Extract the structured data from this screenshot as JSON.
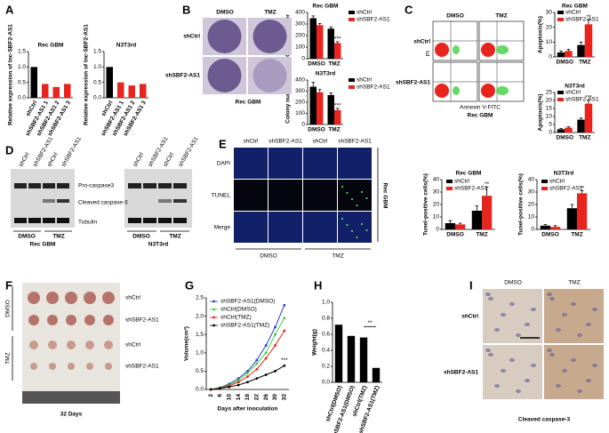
{
  "panel_letters": [
    "A",
    "B",
    "C",
    "D",
    "E",
    "F",
    "G",
    "H",
    "I"
  ],
  "chart_data": [
    {
      "type": "bar",
      "title": "Rec GBM",
      "y_label": "Relative expression of lnc-SBF2-AS1",
      "categories": [
        "shCtrl",
        "shSBF2-AS1 1",
        "shSBF2-AS1 2",
        "shSBF2-AS1 3"
      ],
      "values": [
        1.0,
        0.45,
        0.35,
        0.45
      ],
      "errors": [
        0.12,
        0.08,
        0.1,
        0.09
      ],
      "stars": [
        null,
        "**",
        "**",
        "**"
      ],
      "colors": [
        "#000000",
        "#e8241f",
        "#e8241f",
        "#e8241f"
      ],
      "ylim": [
        0,
        1.5
      ],
      "yticks": [
        {
          "value": 0,
          "label": "0.0"
        },
        {
          "value": 0.5,
          "label": "0.5"
        },
        {
          "value": 1,
          "label": "1.0"
        },
        {
          "value": 1.5,
          "label": "1.5"
        }
      ]
    },
    {
      "type": "bar",
      "title": "N3T3rd",
      "y_label": "Relative expression of lnc-SBF2-AS1",
      "categories": [
        "shCtrl",
        "shSBF2-AS1 1",
        "shSBF2-AS1 2",
        "shSBF2-AS1 3"
      ],
      "values": [
        1.0,
        0.5,
        0.4,
        0.45
      ],
      "errors": [
        0.12,
        0.08,
        0.1,
        0.09
      ],
      "stars": [
        null,
        "**",
        "**",
        "**"
      ],
      "colors": [
        "#000000",
        "#e8241f",
        "#e8241f",
        "#e8241f"
      ],
      "ylim": [
        0,
        1.5
      ],
      "yticks": [
        {
          "value": 0,
          "label": "0.0"
        },
        {
          "value": 0.5,
          "label": "0.5"
        },
        {
          "value": 1,
          "label": "1.0"
        },
        {
          "value": 1.5,
          "label": "1.5"
        }
      ]
    },
    {
      "type": "bar",
      "title": "Rec GBM",
      "y_label": "Colony number",
      "categories": [
        "DMSO",
        "TMZ"
      ],
      "series": [
        {
          "name": "shCtrl",
          "color": "#000000",
          "values": [
            350,
            260
          ],
          "errors": [
            20,
            15
          ],
          "stars": [
            null,
            null
          ]
        },
        {
          "name": "shSBF2-AS1",
          "color": "#e8241f",
          "values": [
            290,
            135
          ],
          "errors": [
            15,
            12
          ],
          "stars": [
            null,
            "***"
          ]
        }
      ],
      "ylim": [
        0,
        400
      ],
      "yticks": [
        0,
        100,
        200,
        300,
        400
      ]
    },
    {
      "type": "bar",
      "title": "N3T3rd",
      "y_label": "Colony number",
      "categories": [
        "DMSO",
        "TMZ"
      ],
      "series": [
        {
          "name": "shCtrl",
          "color": "#000000",
          "values": [
            340,
            265
          ],
          "errors": [
            40,
            20
          ],
          "stars": [
            null,
            null
          ]
        },
        {
          "name": "shSBF2-AS1",
          "color": "#e8241f",
          "values": [
            290,
            130
          ],
          "errors": [
            25,
            15
          ],
          "stars": [
            null,
            "***"
          ]
        }
      ],
      "ylim": [
        0,
        400
      ],
      "yticks": [
        0,
        100,
        200,
        300,
        400
      ]
    },
    {
      "type": "bar",
      "title": "Rec GBM",
      "y_label": "Apoptosis(%)",
      "categories": [
        "DMSO",
        "TMZ"
      ],
      "series": [
        {
          "name": "shCtrl",
          "color": "#000000",
          "values": [
            3,
            8
          ],
          "errors": [
            1,
            2
          ],
          "stars": [
            null,
            null
          ]
        },
        {
          "name": "shSBF2-AS1",
          "color": "#e8241f",
          "values": [
            4,
            22
          ],
          "errors": [
            1,
            3
          ],
          "stars": [
            null,
            "**"
          ]
        }
      ],
      "ylim": [
        0,
        30
      ],
      "yticks": [
        0,
        10,
        20,
        30
      ]
    },
    {
      "type": "bar",
      "title": "N3T3rd",
      "y_label": "Apoptosis(%)",
      "categories": [
        "DMSO",
        "TMZ"
      ],
      "series": [
        {
          "name": "shCtrl",
          "color": "#000000",
          "values": [
            2,
            8
          ],
          "errors": [
            0.5,
            1
          ],
          "stars": [
            null,
            null
          ]
        },
        {
          "name": "shSBF2-AS1",
          "color": "#e8241f",
          "values": [
            3,
            18
          ],
          "errors": [
            0.5,
            2
          ],
          "stars": [
            null,
            "***"
          ]
        }
      ],
      "ylim": [
        0,
        25
      ],
      "yticks": [
        0,
        5,
        10,
        15,
        20,
        25
      ]
    },
    {
      "type": "bar",
      "title": "Rec GBM",
      "y_label": "Tunel-positive cells(%)",
      "categories": [
        "DMSO",
        "TMZ"
      ],
      "series": [
        {
          "name": "shCtrl",
          "color": "#000000",
          "values": [
            5,
            15
          ],
          "errors": [
            2,
            4
          ],
          "stars": [
            null,
            null
          ]
        },
        {
          "name": "shSBF2-AS1",
          "color": "#e8241f",
          "values": [
            4,
            27
          ],
          "errors": [
            1,
            7
          ],
          "stars": [
            null,
            "**"
          ]
        }
      ],
      "ylim": [
        0,
        40
      ],
      "yticks": [
        0,
        10,
        20,
        30,
        40
      ]
    },
    {
      "type": "bar",
      "title": "N3T3rd",
      "y_label": "Tunel-positive cells(%)",
      "categories": [
        "DMSO",
        "TMZ"
      ],
      "series": [
        {
          "name": "shCtrl",
          "color": "#000000",
          "values": [
            3,
            17
          ],
          "errors": [
            1,
            3
          ],
          "stars": [
            null,
            null
          ]
        },
        {
          "name": "shSBF2-AS1",
          "color": "#e8241f",
          "values": [
            2,
            29
          ],
          "errors": [
            1,
            2
          ],
          "stars": [
            null,
            "**"
          ]
        }
      ],
      "ylim": [
        0,
        40
      ],
      "yticks": [
        0,
        10,
        20,
        30,
        40
      ]
    },
    {
      "type": "line",
      "y_label": "Volume(cm³)",
      "x_label": "Days after inoculation",
      "categories": [
        "2",
        "6",
        "10",
        "14",
        "18",
        "22",
        "26",
        "30",
        "32"
      ],
      "series": [
        {
          "name": "shSBF2-AS1(DMSO)",
          "color": "#1f3fcf",
          "values": [
            0,
            0.05,
            0.15,
            0.3,
            0.5,
            0.8,
            1.2,
            1.7,
            2.3
          ]
        },
        {
          "name": "shCtrl(DMSO)",
          "color": "#3ecf3e",
          "values": [
            0,
            0.05,
            0.12,
            0.25,
            0.45,
            0.7,
            1.0,
            1.5,
            1.95
          ]
        },
        {
          "name": "shCtrl(TMZ)",
          "color": "#e8241f",
          "values": [
            0,
            0.04,
            0.1,
            0.2,
            0.35,
            0.55,
            0.85,
            1.2,
            1.6
          ]
        },
        {
          "name": "shSBF2-AS1(TMZ)",
          "color": "#000000",
          "values": [
            0,
            0.03,
            0.07,
            0.12,
            0.2,
            0.3,
            0.4,
            0.5,
            0.65
          ]
        }
      ],
      "annotation": "***",
      "ylim": [
        0,
        2.5
      ],
      "yticks": [
        {
          "value": 0,
          "label": "0.0"
        },
        {
          "value": 0.5,
          "label": "0.5"
        },
        {
          "value": 1,
          "label": "1.0"
        },
        {
          "value": 1.5,
          "label": "1.5"
        },
        {
          "value": 2,
          "label": "2.0"
        },
        {
          "value": 2.5,
          "label": "2.5"
        }
      ]
    },
    {
      "type": "bar",
      "y_label": "Weight(g)",
      "categories": [
        "shCtrl(DMSO)",
        "shSBF2-AS1(DMSO)",
        "shCtrl(TMZ)",
        "shSBF2-AS1(TMZ)"
      ],
      "values": [
        0.72,
        0.58,
        0.56,
        0.18
      ],
      "errors": [
        0.1,
        0.07,
        0.07,
        0.03
      ],
      "stars": [
        null,
        null,
        null,
        null
      ],
      "color": "#000000",
      "annotation": "**",
      "ylim": [
        0,
        1
      ],
      "yticks": [
        {
          "value": 0,
          "label": "0.0"
        },
        {
          "value": 0.2,
          "label": "0.2"
        },
        {
          "value": 0.4,
          "label": "0.4"
        },
        {
          "value": 0.6,
          "label": "0.6"
        },
        {
          "value": 0.8,
          "label": "0.8"
        },
        {
          "value": 1,
          "label": "1.0"
        }
      ]
    }
  ],
  "panels": {
    "B": {
      "columns": [
        "DMSO",
        "TMZ"
      ],
      "rows": [
        "shCtrl",
        "shSBF2-AS1"
      ],
      "caption": "Rec GBM"
    },
    "C": {
      "columns": [
        "DMSO",
        "TMZ"
      ],
      "rows": [
        "shCtrl",
        "shSBF2-AS1"
      ],
      "y_axis": "PI",
      "x_axis": "Annexin V-FITC",
      "caption": "Rec GBM"
    },
    "D": {
      "blots": [
        {
          "lanes": [
            "shCtrl",
            "shSBF2-AS1",
            "shCtrl",
            "shSBF2-AS1"
          ],
          "groups": [
            "DMSO",
            "TMZ"
          ],
          "caption": "Rec GBM"
        },
        {
          "lanes": [
            "shCtrl",
            "shSBF2-AS1",
            "shCtrl",
            "shSBF2-AS1"
          ],
          "groups": [
            "DMSO",
            "TMZ"
          ],
          "caption": "N3T3rd"
        }
      ],
      "bands": [
        "Pro-caspase3",
        "Cleaved caspase-3",
        "Tubulin"
      ]
    },
    "E": {
      "columns": [
        "shCtrl",
        "shSBF2-AS1",
        "shCtrl",
        "shSBF2-AS1"
      ],
      "rows": [
        "DAPI",
        "TUNEL",
        "Merge"
      ],
      "groups": [
        "DMSO",
        "TMZ"
      ],
      "side": "Rec GBM"
    },
    "F": {
      "rows": [
        "shCtrl",
        "shSBF2-AS1",
        "shCtrl",
        "shSBF2-AS1"
      ],
      "groups": [
        "DMSO",
        "TMZ"
      ],
      "caption": "32 Days"
    },
    "I": {
      "columns": [
        "DMSO",
        "TMZ"
      ],
      "rows": [
        "shCtrl",
        "shSBF2-AS1"
      ],
      "caption": "Cleaved caspase-3"
    }
  }
}
